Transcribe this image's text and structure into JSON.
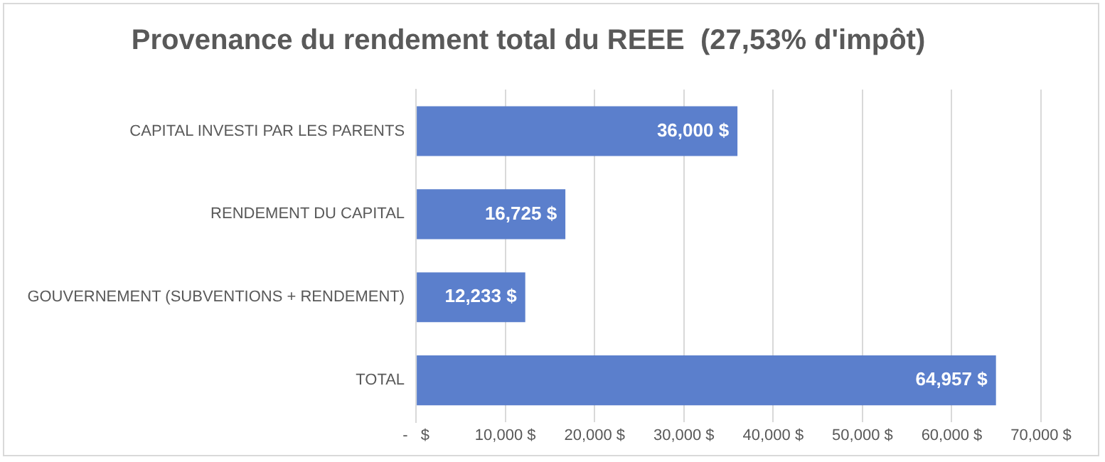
{
  "chart_data": {
    "type": "bar",
    "orientation": "horizontal",
    "title": "Provenance du rendement total du REEE  (27,53% d'impôt)",
    "categories": [
      "CAPITAL INVESTI PAR LES PARENTS",
      "RENDEMENT DU CAPITAL",
      "GOUVERNEMENT (SUBVENTIONS + RENDEMENT)",
      "TOTAL"
    ],
    "values": [
      36000,
      16725,
      12233,
      64957
    ],
    "value_labels": [
      "36,000 $",
      "16,725 $",
      "12,233 $",
      "64,957 $"
    ],
    "color": "#5b7fcc",
    "xlim": [
      0,
      70000
    ],
    "xticks": [
      {
        "value": 0,
        "label": "-   $"
      },
      {
        "value": 10000,
        "label": "10,000 $"
      },
      {
        "value": 20000,
        "label": "20,000 $"
      },
      {
        "value": 30000,
        "label": "30,000 $"
      },
      {
        "value": 40000,
        "label": "40,000 $"
      },
      {
        "value": 50000,
        "label": "50,000 $"
      },
      {
        "value": 60000,
        "label": "60,000 $"
      },
      {
        "value": 70000,
        "label": "70,000 $"
      }
    ],
    "grid": "x",
    "legend": false
  }
}
